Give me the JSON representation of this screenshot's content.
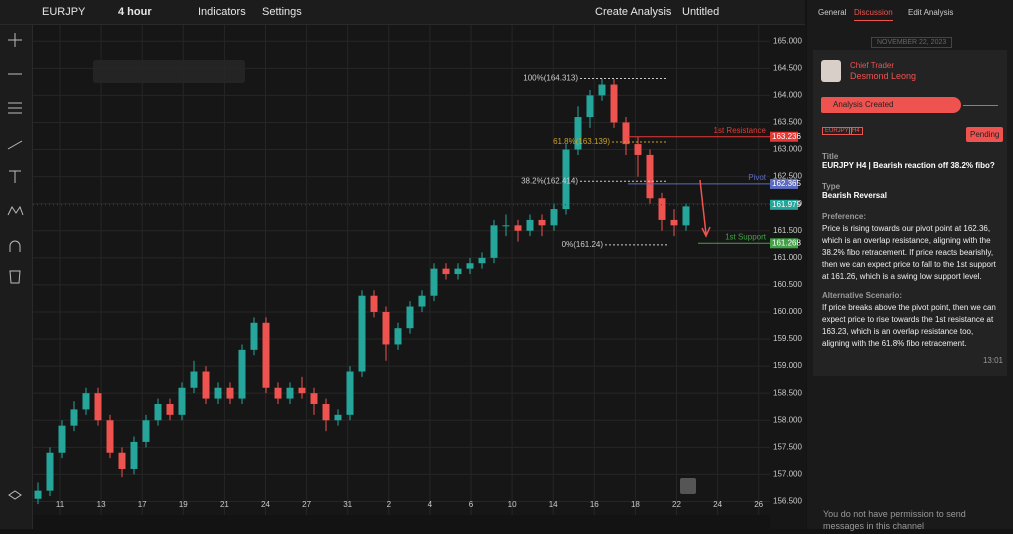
{
  "toolbar": {
    "symbol": "EURJPY",
    "interval": "4 hour",
    "indicators": "Indicators",
    "settings": "Settings",
    "create": "Create Analysis",
    "layout": "Untitled"
  },
  "chart_data": {
    "type": "candlestick",
    "up_color": "#26a69a",
    "down_color": "#ef5350",
    "ylim": [
      156.25,
      165.3
    ],
    "yticks": [
      {
        "value": 165,
        "label": "165.000"
      },
      {
        "value": 164.5,
        "label": "164.500"
      },
      {
        "value": 164,
        "label": "164.000"
      },
      {
        "value": 163.5,
        "label": "163.500"
      },
      {
        "value": 163,
        "label": "163.000"
      },
      {
        "value": 162.5,
        "label": "162.500"
      },
      {
        "value": 162,
        "label": "162.000"
      },
      {
        "value": 161.5,
        "label": "161.500"
      },
      {
        "value": 161,
        "label": "161.000"
      },
      {
        "value": 160.5,
        "label": "160.500"
      },
      {
        "value": 160,
        "label": "160.000"
      },
      {
        "value": 159.5,
        "label": "159.500"
      },
      {
        "value": 159,
        "label": "159.000"
      },
      {
        "value": 158.5,
        "label": "158.500"
      },
      {
        "value": 158,
        "label": "158.000"
      },
      {
        "value": 157.5,
        "label": "157.500"
      },
      {
        "value": 157,
        "label": "157.000"
      },
      {
        "value": 156.5,
        "label": "156.500"
      }
    ],
    "x_labels": [
      "11",
      "13",
      "17",
      "19",
      "21",
      "24",
      "27",
      "31",
      "2",
      "4",
      "6",
      "10",
      "14",
      "16",
      "18",
      "22",
      "24",
      "26"
    ],
    "grid": true,
    "candles": [
      [
        156.55,
        156.85,
        156.45,
        156.7
      ],
      [
        156.7,
        157.5,
        156.6,
        157.4
      ],
      [
        157.4,
        158.0,
        157.3,
        157.9
      ],
      [
        157.9,
        158.35,
        157.8,
        158.2
      ],
      [
        158.2,
        158.6,
        158.1,
        158.5
      ],
      [
        158.5,
        158.6,
        157.9,
        158.0
      ],
      [
        158.0,
        158.1,
        157.3,
        157.4
      ],
      [
        157.4,
        157.5,
        156.95,
        157.1
      ],
      [
        157.1,
        157.7,
        157.0,
        157.6
      ],
      [
        157.6,
        158.1,
        157.5,
        158.0
      ],
      [
        158.0,
        158.4,
        157.9,
        158.3
      ],
      [
        158.3,
        158.4,
        158.0,
        158.1
      ],
      [
        158.1,
        158.7,
        158.0,
        158.6
      ],
      [
        158.6,
        159.1,
        158.5,
        158.9
      ],
      [
        158.9,
        159.0,
        158.3,
        158.4
      ],
      [
        158.4,
        158.7,
        158.3,
        158.6
      ],
      [
        158.6,
        158.7,
        158.3,
        158.4
      ],
      [
        158.4,
        159.4,
        158.3,
        159.3
      ],
      [
        159.3,
        159.9,
        159.2,
        159.8
      ],
      [
        159.8,
        159.9,
        158.5,
        158.6
      ],
      [
        158.6,
        158.7,
        158.3,
        158.4
      ],
      [
        158.4,
        158.7,
        158.3,
        158.6
      ],
      [
        158.6,
        158.8,
        158.4,
        158.5
      ],
      [
        158.5,
        158.6,
        158.1,
        158.3
      ],
      [
        158.3,
        158.4,
        157.8,
        158.0
      ],
      [
        158.0,
        158.2,
        157.9,
        158.1
      ],
      [
        158.1,
        159.0,
        158.0,
        158.9
      ],
      [
        158.9,
        160.4,
        158.8,
        160.3
      ],
      [
        160.3,
        160.4,
        159.9,
        160.0
      ],
      [
        160.0,
        160.1,
        159.1,
        159.4
      ],
      [
        159.4,
        159.8,
        159.3,
        159.7
      ],
      [
        159.7,
        160.2,
        159.6,
        160.1
      ],
      [
        160.1,
        160.4,
        160.0,
        160.3
      ],
      [
        160.3,
        160.9,
        160.2,
        160.8
      ],
      [
        160.8,
        160.9,
        160.6,
        160.7
      ],
      [
        160.7,
        160.9,
        160.6,
        160.8
      ],
      [
        160.8,
        161.0,
        160.7,
        160.9
      ],
      [
        160.9,
        161.1,
        160.8,
        161.0
      ],
      [
        161.0,
        161.7,
        160.9,
        161.6
      ],
      [
        161.6,
        161.8,
        161.4,
        161.6
      ],
      [
        161.6,
        161.7,
        161.3,
        161.5
      ],
      [
        161.5,
        161.8,
        161.4,
        161.7
      ],
      [
        161.7,
        161.8,
        161.4,
        161.6
      ],
      [
        161.6,
        162.0,
        161.5,
        161.9
      ],
      [
        161.9,
        163.1,
        161.8,
        163.0
      ],
      [
        163.0,
        163.8,
        162.9,
        163.6
      ],
      [
        163.6,
        164.1,
        163.4,
        164.0
      ],
      [
        164.0,
        164.31,
        163.9,
        164.2
      ],
      [
        164.2,
        164.3,
        163.4,
        163.5
      ],
      [
        163.5,
        163.6,
        162.9,
        163.1
      ],
      [
        163.1,
        163.24,
        162.5,
        162.9
      ],
      [
        162.9,
        163.0,
        162.0,
        162.1
      ],
      [
        162.1,
        162.2,
        161.5,
        161.7
      ],
      [
        161.7,
        161.9,
        161.4,
        161.6
      ],
      [
        161.6,
        162.0,
        161.5,
        161.95
      ]
    ],
    "fib": [
      {
        "text": "100%(164.313)",
        "value": 164.313,
        "color": "#cccccc"
      },
      {
        "text": "61.8%(163.139)",
        "value": 163.139,
        "color": "#c9a227"
      },
      {
        "text": "38.2%(162.414)",
        "value": 162.414,
        "color": "#cccccc"
      },
      {
        "text": "0%(161.24)",
        "value": 161.24,
        "color": "#cccccc"
      }
    ],
    "levels": [
      {
        "name": "1st Resistance",
        "value": 163.236,
        "color": "#e53935"
      },
      {
        "name": "Pivot",
        "value": 162.365,
        "color": "#5c6bc0"
      },
      {
        "name": "1st Support",
        "value": 161.268,
        "color": "#43a047"
      }
    ],
    "last_price": {
      "value": 161.979,
      "color": "#26a69a"
    }
  },
  "panel": {
    "tabs": [
      "General",
      "Discussion",
      "Edit Analysis"
    ],
    "date": "NOVEMBER 22, 2023",
    "role": "Chief Trader",
    "author": "Desmond Leong",
    "status_banner": "Analysis Created",
    "tags": [
      "EURJPY",
      "H4"
    ],
    "status": "Pending",
    "title_label": "Title",
    "title": "EURJPY H4 | Bearish reaction off 38.2% fibo?",
    "type_label": "Type",
    "type": "Bearish Reversal",
    "preference_label": "Preference:",
    "preference": "Price is rising towards our pivot point at 162.36, which is an overlap resistance, aligning with the 38.2% fibo retracement. If price reacts bearishly, then we can expect price to fall to the 1st support at 161.26, which is a swing low support level.",
    "alternative_label": "Alternative Scenario:",
    "alternative": "If price breaks above the pivot point, then we can expect price to rise towards the 1st resistance at 163.23, which is an overlap resistance too, aligning with the 61.8% fibo retracement.",
    "time": "13:01",
    "footer": "You do not have permission to send messages in this channel"
  }
}
